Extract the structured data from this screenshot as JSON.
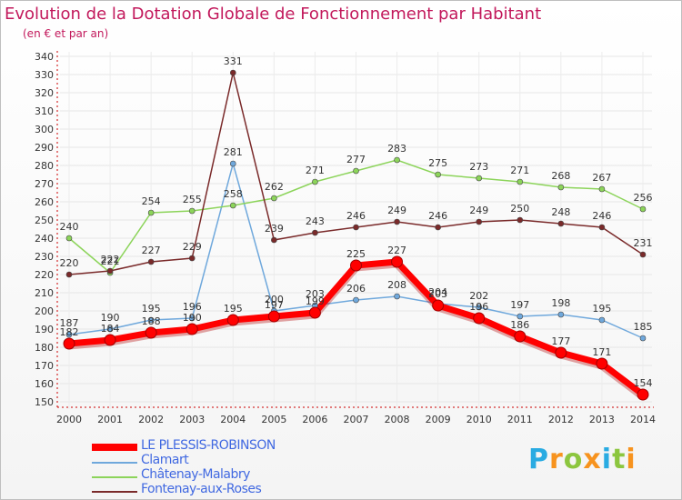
{
  "title": "Evolution de la Dotation Globale de Fonctionnement par Habitant",
  "subtitle": "(en € et par an)",
  "logo": {
    "text": "Proxiti",
    "letters": [
      "P",
      "r",
      "o",
      "x",
      "i",
      "t",
      "i"
    ],
    "colors": [
      "#29abe2",
      "#f7931e",
      "#8cc63f",
      "#f7931e",
      "#29abe2",
      "#8cc63f",
      "#f7931e"
    ]
  },
  "chart_data": {
    "type": "line",
    "title": "Evolution de la Dotation Globale de Fonctionnement par Habitant",
    "subtitle": "(en € et par an)",
    "x": [
      "2000",
      "2001",
      "2002",
      "2003",
      "2004",
      "2005",
      "2006",
      "2007",
      "2008",
      "2009",
      "2010",
      "2011",
      "2012",
      "2013",
      "2014"
    ],
    "ylim": [
      150,
      340
    ],
    "yticks": [
      150,
      160,
      170,
      180,
      190,
      200,
      210,
      220,
      230,
      240,
      250,
      260,
      270,
      280,
      290,
      300,
      310,
      320,
      330,
      340
    ],
    "grid": true,
    "legend_position": "bottom",
    "series": [
      {
        "name": "LE PLESSIS-ROBINSON",
        "color": "#ff0000",
        "values": [
          182,
          184,
          188,
          190,
          195,
          197,
          199,
          225,
          227,
          203,
          196,
          186,
          177,
          171,
          154
        ],
        "thick": true
      },
      {
        "name": "Clamart",
        "color": "#6fa8dc",
        "values": [
          187,
          190,
          195,
          196,
          281,
          200,
          203,
          206,
          208,
          204,
          202,
          197,
          198,
          195,
          185
        ],
        "thick": false
      },
      {
        "name": "Châtenay-Malabry",
        "color": "#8cd45a",
        "values": [
          240,
          221,
          254,
          255,
          258,
          262,
          271,
          277,
          283,
          275,
          273,
          271,
          268,
          267,
          256
        ],
        "thick": false
      },
      {
        "name": "Fontenay-aux-Roses",
        "color": "#7a2a2a",
        "values": [
          220,
          222,
          227,
          229,
          331,
          239,
          243,
          246,
          249,
          246,
          249,
          250,
          248,
          246,
          231
        ],
        "thick": false
      }
    ]
  }
}
